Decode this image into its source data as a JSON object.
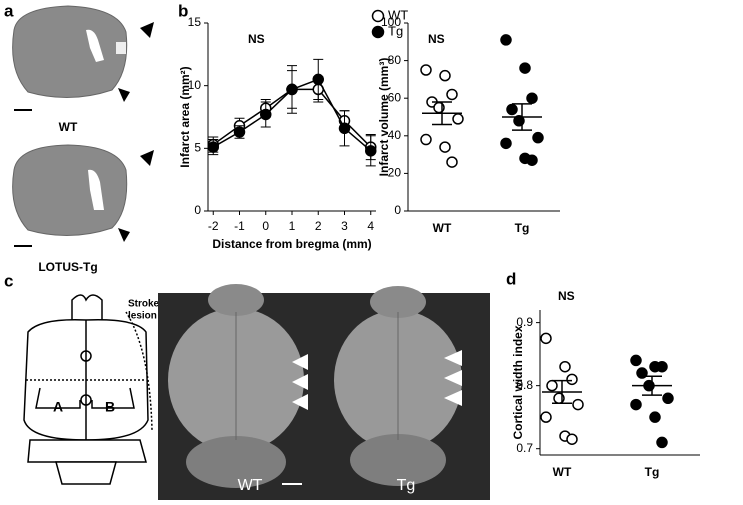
{
  "panel_labels": [
    "a",
    "b",
    "c",
    "d"
  ],
  "panel_a": {
    "labels": [
      "WT",
      "LOTUS-Tg"
    ]
  },
  "panel_c": {
    "diagram_labels": [
      "Stroke",
      "lesion",
      "A",
      "B"
    ],
    "photo_labels": [
      "WT",
      "Tg"
    ]
  },
  "chart_data": [
    {
      "type": "line",
      "annotation": "NS",
      "xlabel": "Distance from bregma (mm)",
      "ylabel": "Infarct area (mm²)",
      "x": [
        -2,
        -1,
        0,
        1,
        2,
        3,
        4
      ],
      "xlim": [
        -2.2,
        4.2
      ],
      "xticks": [
        -2,
        -1,
        0,
        1,
        2,
        3,
        4
      ],
      "ylim": [
        0,
        15
      ],
      "yticks": [
        0,
        5,
        10,
        15
      ],
      "legend": "upper right",
      "series": [
        {
          "name": "WT",
          "marker": "open",
          "color": "#000000",
          "values": [
            5.3,
            6.8,
            8.2,
            9.7,
            9.7,
            7.2,
            5.1
          ],
          "errors": [
            0.6,
            0.6,
            0.7,
            1.5,
            1.0,
            0.8,
            1.0
          ]
        },
        {
          "name": "Tg",
          "marker": "filled",
          "color": "#000000",
          "values": [
            5.1,
            6.3,
            7.7,
            9.7,
            10.5,
            6.6,
            4.8
          ],
          "errors": [
            0.6,
            0.5,
            1.0,
            1.9,
            1.6,
            1.4,
            1.2
          ]
        }
      ]
    },
    {
      "type": "dot",
      "annotation": "NS",
      "ylabel": "Infarct volume (mm³)",
      "categories": [
        "WT",
        "Tg"
      ],
      "markers": [
        "open",
        "filled"
      ],
      "color": "#000000",
      "values": [
        [
          75,
          72,
          62,
          58,
          55,
          49,
          38,
          34,
          26
        ],
        [
          91,
          76,
          60,
          54,
          48,
          39,
          36,
          28,
          27
        ]
      ],
      "means": [
        52,
        50
      ],
      "errors": [
        6,
        7
      ],
      "ylim": [
        0,
        100
      ],
      "yticks": [
        0,
        20,
        40,
        60,
        80,
        100
      ]
    },
    {
      "type": "dot",
      "annotation": "NS",
      "ylabel": "Cortical width index",
      "categories": [
        "WT",
        "Tg"
      ],
      "markers": [
        "open",
        "filled"
      ],
      "color": "#000000",
      "values": [
        [
          0.875,
          0.83,
          0.81,
          0.8,
          0.78,
          0.77,
          0.75,
          0.72,
          0.715
        ],
        [
          0.84,
          0.83,
          0.83,
          0.82,
          0.8,
          0.78,
          0.77,
          0.75,
          0.71
        ]
      ],
      "means": [
        0.79,
        0.8
      ],
      "errors": [
        0.018,
        0.015
      ],
      "ylim": [
        0.69,
        0.92
      ],
      "yticks": [
        0.7,
        0.8,
        0.9
      ]
    }
  ]
}
